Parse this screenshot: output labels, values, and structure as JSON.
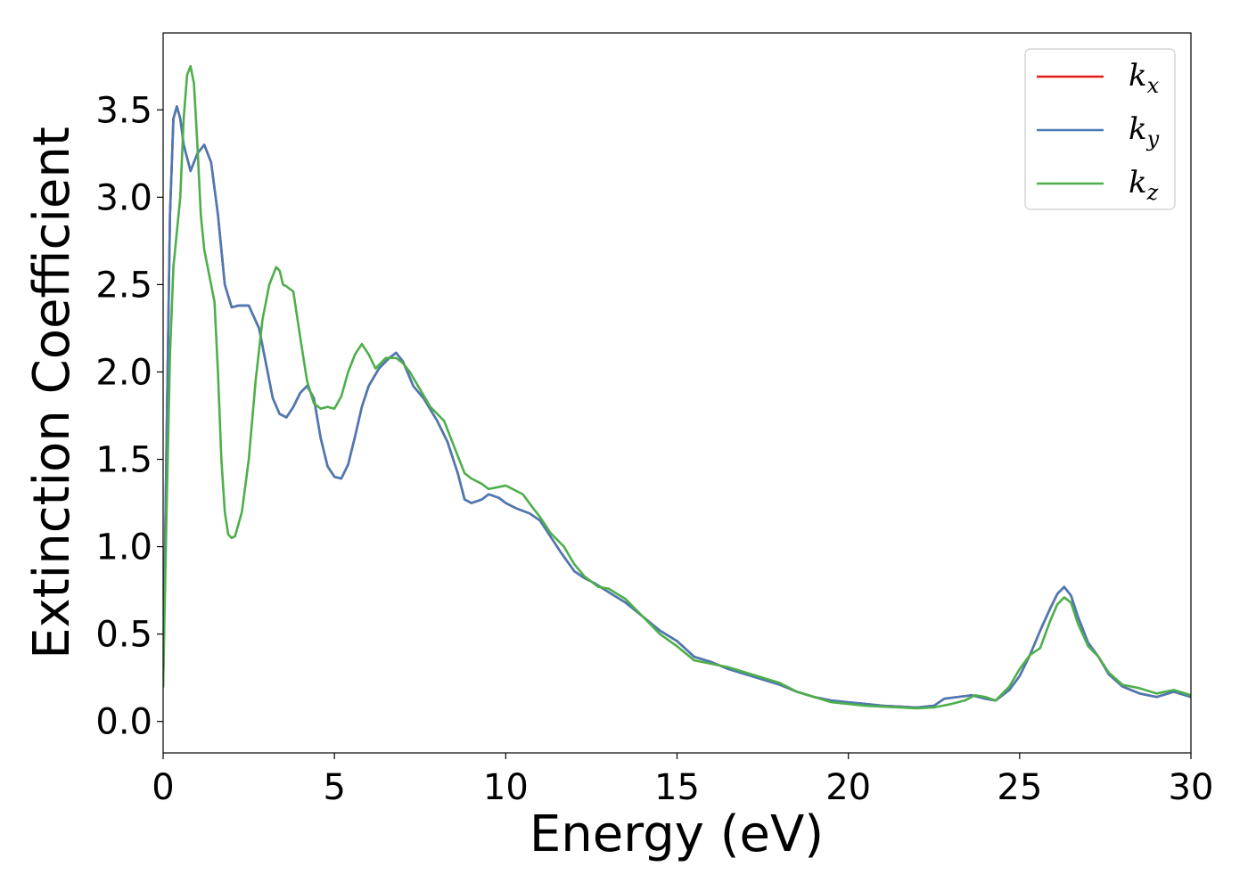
{
  "chart_data": {
    "type": "line",
    "title": "",
    "xlabel": "Energy (eV)",
    "ylabel": "Extinction Coefficient",
    "xlim": [
      0,
      30
    ],
    "ylim": [
      -0.18,
      3.94
    ],
    "xticks": [
      "0",
      "5",
      "10",
      "15",
      "20",
      "25",
      "30"
    ],
    "yticks": [
      "0.0",
      "0.5",
      "1.0",
      "1.5",
      "2.0",
      "2.5",
      "3.0",
      "3.5"
    ],
    "grid": false,
    "legend_position": "top-right",
    "series": [
      {
        "name": "k_x",
        "legend_base": "k",
        "legend_sub": "x",
        "color": "#e41a1c",
        "points": [
          [
            0,
            0.2
          ],
          [
            0.1,
            1.6
          ],
          [
            0.2,
            2.9
          ],
          [
            0.3,
            3.45
          ],
          [
            0.4,
            3.52
          ],
          [
            0.5,
            3.45
          ],
          [
            0.6,
            3.3
          ],
          [
            0.8,
            3.15
          ],
          [
            1.0,
            3.25
          ],
          [
            1.2,
            3.3
          ],
          [
            1.4,
            3.2
          ],
          [
            1.6,
            2.9
          ],
          [
            1.8,
            2.5
          ],
          [
            2.0,
            2.37
          ],
          [
            2.2,
            2.38
          ],
          [
            2.5,
            2.38
          ],
          [
            2.8,
            2.25
          ],
          [
            3.0,
            2.05
          ],
          [
            3.2,
            1.85
          ],
          [
            3.4,
            1.76
          ],
          [
            3.6,
            1.74
          ],
          [
            3.8,
            1.8
          ],
          [
            4.0,
            1.88
          ],
          [
            4.2,
            1.92
          ],
          [
            4.4,
            1.85
          ],
          [
            4.6,
            1.62
          ],
          [
            4.8,
            1.46
          ],
          [
            5.0,
            1.4
          ],
          [
            5.2,
            1.39
          ],
          [
            5.4,
            1.47
          ],
          [
            5.6,
            1.63
          ],
          [
            5.8,
            1.8
          ],
          [
            6.0,
            1.92
          ],
          [
            6.3,
            2.02
          ],
          [
            6.6,
            2.08
          ],
          [
            6.8,
            2.11
          ],
          [
            7.0,
            2.06
          ],
          [
            7.3,
            1.92
          ],
          [
            7.6,
            1.85
          ],
          [
            8.0,
            1.72
          ],
          [
            8.3,
            1.6
          ],
          [
            8.6,
            1.42
          ],
          [
            8.8,
            1.27
          ],
          [
            9.0,
            1.25
          ],
          [
            9.3,
            1.27
          ],
          [
            9.5,
            1.3
          ],
          [
            9.8,
            1.28
          ],
          [
            10.0,
            1.25
          ],
          [
            10.3,
            1.22
          ],
          [
            10.7,
            1.19
          ],
          [
            11.0,
            1.15
          ],
          [
            11.3,
            1.06
          ],
          [
            11.6,
            0.97
          ],
          [
            12.0,
            0.86
          ],
          [
            12.3,
            0.82
          ],
          [
            12.6,
            0.79
          ],
          [
            13.0,
            0.74
          ],
          [
            13.5,
            0.68
          ],
          [
            14.0,
            0.6
          ],
          [
            14.5,
            0.52
          ],
          [
            15.0,
            0.46
          ],
          [
            15.5,
            0.37
          ],
          [
            16.0,
            0.34
          ],
          [
            16.5,
            0.3
          ],
          [
            17.0,
            0.27
          ],
          [
            17.5,
            0.24
          ],
          [
            18.0,
            0.21
          ],
          [
            18.5,
            0.17
          ],
          [
            19.0,
            0.14
          ],
          [
            19.5,
            0.12
          ],
          [
            20.0,
            0.11
          ],
          [
            20.5,
            0.1
          ],
          [
            21.0,
            0.09
          ],
          [
            21.5,
            0.085
          ],
          [
            22.0,
            0.08
          ],
          [
            22.5,
            0.09
          ],
          [
            22.8,
            0.13
          ],
          [
            23.2,
            0.14
          ],
          [
            23.6,
            0.15
          ],
          [
            24.0,
            0.13
          ],
          [
            24.3,
            0.12
          ],
          [
            24.7,
            0.18
          ],
          [
            25.0,
            0.26
          ],
          [
            25.3,
            0.38
          ],
          [
            25.6,
            0.52
          ],
          [
            25.9,
            0.65
          ],
          [
            26.1,
            0.73
          ],
          [
            26.3,
            0.77
          ],
          [
            26.5,
            0.72
          ],
          [
            26.7,
            0.6
          ],
          [
            27.0,
            0.45
          ],
          [
            27.3,
            0.37
          ],
          [
            27.6,
            0.27
          ],
          [
            28.0,
            0.2
          ],
          [
            28.5,
            0.16
          ],
          [
            29.0,
            0.14
          ],
          [
            29.5,
            0.17
          ],
          [
            30.0,
            0.14
          ]
        ]
      },
      {
        "name": "k_y",
        "legend_base": "k",
        "legend_sub": "y",
        "color": "#4a7ab5",
        "points": [
          [
            0,
            0.2
          ],
          [
            0.1,
            1.6
          ],
          [
            0.2,
            2.9
          ],
          [
            0.3,
            3.45
          ],
          [
            0.4,
            3.52
          ],
          [
            0.5,
            3.45
          ],
          [
            0.6,
            3.3
          ],
          [
            0.8,
            3.15
          ],
          [
            1.0,
            3.25
          ],
          [
            1.2,
            3.3
          ],
          [
            1.4,
            3.2
          ],
          [
            1.6,
            2.9
          ],
          [
            1.8,
            2.5
          ],
          [
            2.0,
            2.37
          ],
          [
            2.2,
            2.38
          ],
          [
            2.5,
            2.38
          ],
          [
            2.8,
            2.25
          ],
          [
            3.0,
            2.05
          ],
          [
            3.2,
            1.85
          ],
          [
            3.4,
            1.76
          ],
          [
            3.6,
            1.74
          ],
          [
            3.8,
            1.8
          ],
          [
            4.0,
            1.88
          ],
          [
            4.2,
            1.92
          ],
          [
            4.4,
            1.85
          ],
          [
            4.6,
            1.62
          ],
          [
            4.8,
            1.46
          ],
          [
            5.0,
            1.4
          ],
          [
            5.2,
            1.39
          ],
          [
            5.4,
            1.47
          ],
          [
            5.6,
            1.63
          ],
          [
            5.8,
            1.8
          ],
          [
            6.0,
            1.92
          ],
          [
            6.3,
            2.02
          ],
          [
            6.6,
            2.08
          ],
          [
            6.8,
            2.11
          ],
          [
            7.0,
            2.06
          ],
          [
            7.3,
            1.92
          ],
          [
            7.6,
            1.85
          ],
          [
            8.0,
            1.72
          ],
          [
            8.3,
            1.6
          ],
          [
            8.6,
            1.42
          ],
          [
            8.8,
            1.27
          ],
          [
            9.0,
            1.25
          ],
          [
            9.3,
            1.27
          ],
          [
            9.5,
            1.3
          ],
          [
            9.8,
            1.28
          ],
          [
            10.0,
            1.25
          ],
          [
            10.3,
            1.22
          ],
          [
            10.7,
            1.19
          ],
          [
            11.0,
            1.15
          ],
          [
            11.3,
            1.06
          ],
          [
            11.6,
            0.97
          ],
          [
            12.0,
            0.86
          ],
          [
            12.3,
            0.82
          ],
          [
            12.6,
            0.79
          ],
          [
            13.0,
            0.74
          ],
          [
            13.5,
            0.68
          ],
          [
            14.0,
            0.6
          ],
          [
            14.5,
            0.52
          ],
          [
            15.0,
            0.46
          ],
          [
            15.5,
            0.37
          ],
          [
            16.0,
            0.34
          ],
          [
            16.5,
            0.3
          ],
          [
            17.0,
            0.27
          ],
          [
            17.5,
            0.24
          ],
          [
            18.0,
            0.21
          ],
          [
            18.5,
            0.17
          ],
          [
            19.0,
            0.14
          ],
          [
            19.5,
            0.12
          ],
          [
            20.0,
            0.11
          ],
          [
            20.5,
            0.1
          ],
          [
            21.0,
            0.09
          ],
          [
            21.5,
            0.085
          ],
          [
            22.0,
            0.08
          ],
          [
            22.5,
            0.09
          ],
          [
            22.8,
            0.13
          ],
          [
            23.2,
            0.14
          ],
          [
            23.6,
            0.15
          ],
          [
            24.0,
            0.13
          ],
          [
            24.3,
            0.12
          ],
          [
            24.7,
            0.18
          ],
          [
            25.0,
            0.26
          ],
          [
            25.3,
            0.38
          ],
          [
            25.6,
            0.52
          ],
          [
            25.9,
            0.65
          ],
          [
            26.1,
            0.73
          ],
          [
            26.3,
            0.77
          ],
          [
            26.5,
            0.72
          ],
          [
            26.7,
            0.6
          ],
          [
            27.0,
            0.45
          ],
          [
            27.3,
            0.37
          ],
          [
            27.6,
            0.27
          ],
          [
            28.0,
            0.2
          ],
          [
            28.5,
            0.16
          ],
          [
            29.0,
            0.14
          ],
          [
            29.5,
            0.17
          ],
          [
            30.0,
            0.14
          ]
        ]
      },
      {
        "name": "k_z",
        "legend_base": "k",
        "legend_sub": "z",
        "color": "#4daf4a",
        "points": [
          [
            0,
            0.2
          ],
          [
            0.1,
            1.2
          ],
          [
            0.2,
            2.1
          ],
          [
            0.3,
            2.6
          ],
          [
            0.5,
            3.0
          ],
          [
            0.6,
            3.45
          ],
          [
            0.7,
            3.7
          ],
          [
            0.8,
            3.75
          ],
          [
            0.9,
            3.65
          ],
          [
            1.0,
            3.3
          ],
          [
            1.1,
            2.9
          ],
          [
            1.2,
            2.7
          ],
          [
            1.3,
            2.6
          ],
          [
            1.5,
            2.4
          ],
          [
            1.6,
            2.0
          ],
          [
            1.7,
            1.5
          ],
          [
            1.8,
            1.2
          ],
          [
            1.9,
            1.07
          ],
          [
            2.0,
            1.05
          ],
          [
            2.1,
            1.06
          ],
          [
            2.3,
            1.2
          ],
          [
            2.5,
            1.5
          ],
          [
            2.7,
            1.95
          ],
          [
            2.9,
            2.3
          ],
          [
            3.1,
            2.5
          ],
          [
            3.3,
            2.6
          ],
          [
            3.4,
            2.58
          ],
          [
            3.5,
            2.5
          ],
          [
            3.6,
            2.49
          ],
          [
            3.8,
            2.46
          ],
          [
            4.0,
            2.2
          ],
          [
            4.2,
            1.95
          ],
          [
            4.4,
            1.82
          ],
          [
            4.6,
            1.79
          ],
          [
            4.8,
            1.8
          ],
          [
            5.0,
            1.79
          ],
          [
            5.2,
            1.86
          ],
          [
            5.4,
            2.0
          ],
          [
            5.6,
            2.1
          ],
          [
            5.8,
            2.16
          ],
          [
            6.0,
            2.1
          ],
          [
            6.2,
            2.02
          ],
          [
            6.5,
            2.08
          ],
          [
            6.8,
            2.08
          ],
          [
            7.0,
            2.05
          ],
          [
            7.2,
            2.0
          ],
          [
            7.5,
            1.9
          ],
          [
            7.8,
            1.8
          ],
          [
            8.2,
            1.72
          ],
          [
            8.5,
            1.57
          ],
          [
            8.8,
            1.42
          ],
          [
            9.0,
            1.39
          ],
          [
            9.3,
            1.36
          ],
          [
            9.5,
            1.33
          ],
          [
            10.0,
            1.35
          ],
          [
            10.2,
            1.33
          ],
          [
            10.5,
            1.3
          ],
          [
            10.8,
            1.22
          ],
          [
            11.0,
            1.17
          ],
          [
            11.3,
            1.08
          ],
          [
            11.7,
            1.0
          ],
          [
            12.0,
            0.9
          ],
          [
            12.3,
            0.83
          ],
          [
            12.7,
            0.77
          ],
          [
            13.0,
            0.76
          ],
          [
            13.5,
            0.7
          ],
          [
            14.0,
            0.6
          ],
          [
            14.5,
            0.5
          ],
          [
            15.0,
            0.43
          ],
          [
            15.5,
            0.35
          ],
          [
            16.0,
            0.33
          ],
          [
            16.5,
            0.31
          ],
          [
            17.0,
            0.28
          ],
          [
            17.5,
            0.25
          ],
          [
            18.0,
            0.22
          ],
          [
            18.5,
            0.17
          ],
          [
            19.0,
            0.14
          ],
          [
            19.5,
            0.11
          ],
          [
            20.0,
            0.1
          ],
          [
            20.5,
            0.09
          ],
          [
            21.0,
            0.085
          ],
          [
            21.5,
            0.08
          ],
          [
            22.0,
            0.075
          ],
          [
            22.5,
            0.08
          ],
          [
            23.0,
            0.1
          ],
          [
            23.4,
            0.12
          ],
          [
            23.7,
            0.15
          ],
          [
            24.0,
            0.14
          ],
          [
            24.3,
            0.12
          ],
          [
            24.7,
            0.2
          ],
          [
            25.0,
            0.3
          ],
          [
            25.3,
            0.38
          ],
          [
            25.6,
            0.42
          ],
          [
            25.9,
            0.58
          ],
          [
            26.1,
            0.67
          ],
          [
            26.3,
            0.71
          ],
          [
            26.5,
            0.68
          ],
          [
            26.7,
            0.56
          ],
          [
            27.0,
            0.43
          ],
          [
            27.3,
            0.37
          ],
          [
            27.6,
            0.28
          ],
          [
            28.0,
            0.21
          ],
          [
            28.5,
            0.19
          ],
          [
            29.0,
            0.16
          ],
          [
            29.5,
            0.18
          ],
          [
            30.0,
            0.15
          ]
        ]
      }
    ]
  }
}
